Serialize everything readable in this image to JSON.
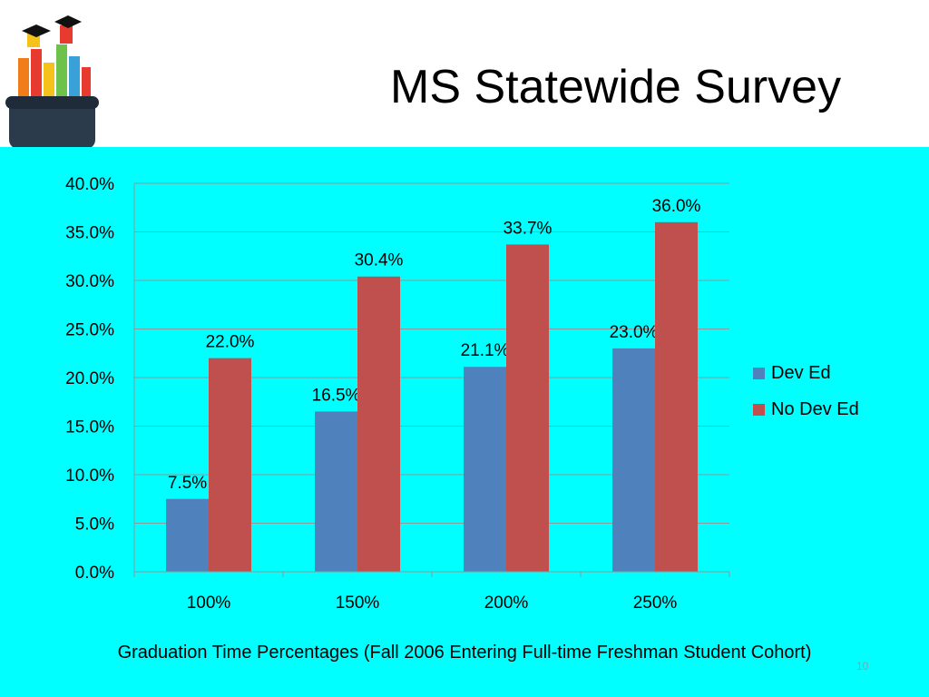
{
  "slide": {
    "title": "MS Statewide Survey",
    "caption": "Graduation Time Percentages (Fall 2006 Entering Full-time Freshman Student Cohort)",
    "slide_number": "10",
    "logo_icon": "graduation-caps-books-icon"
  },
  "colors": {
    "panel": "#00ffff",
    "dev_ed": "#4f81bd",
    "no_dev_ed": "#c0504d",
    "grid": "#8a9a9a"
  },
  "chart_data": {
    "type": "bar",
    "categories": [
      "100%",
      "150%",
      "200%",
      "250%"
    ],
    "series": [
      {
        "name": "Dev Ed",
        "values": [
          7.5,
          16.5,
          21.1,
          23.0
        ],
        "labels": [
          "7.5%",
          "16.5%",
          "21.1%",
          "23.0%"
        ]
      },
      {
        "name": "No Dev Ed",
        "values": [
          22.0,
          30.4,
          33.7,
          36.0
        ],
        "labels": [
          "22.0%",
          "30.4%",
          "33.7%",
          "36.0%"
        ]
      }
    ],
    "y_ticks": [
      "0.0%",
      "5.0%",
      "10.0%",
      "15.0%",
      "20.0%",
      "25.0%",
      "30.0%",
      "35.0%",
      "40.0%"
    ],
    "ylim": [
      0,
      40
    ],
    "grid": true,
    "legend": "right"
  }
}
